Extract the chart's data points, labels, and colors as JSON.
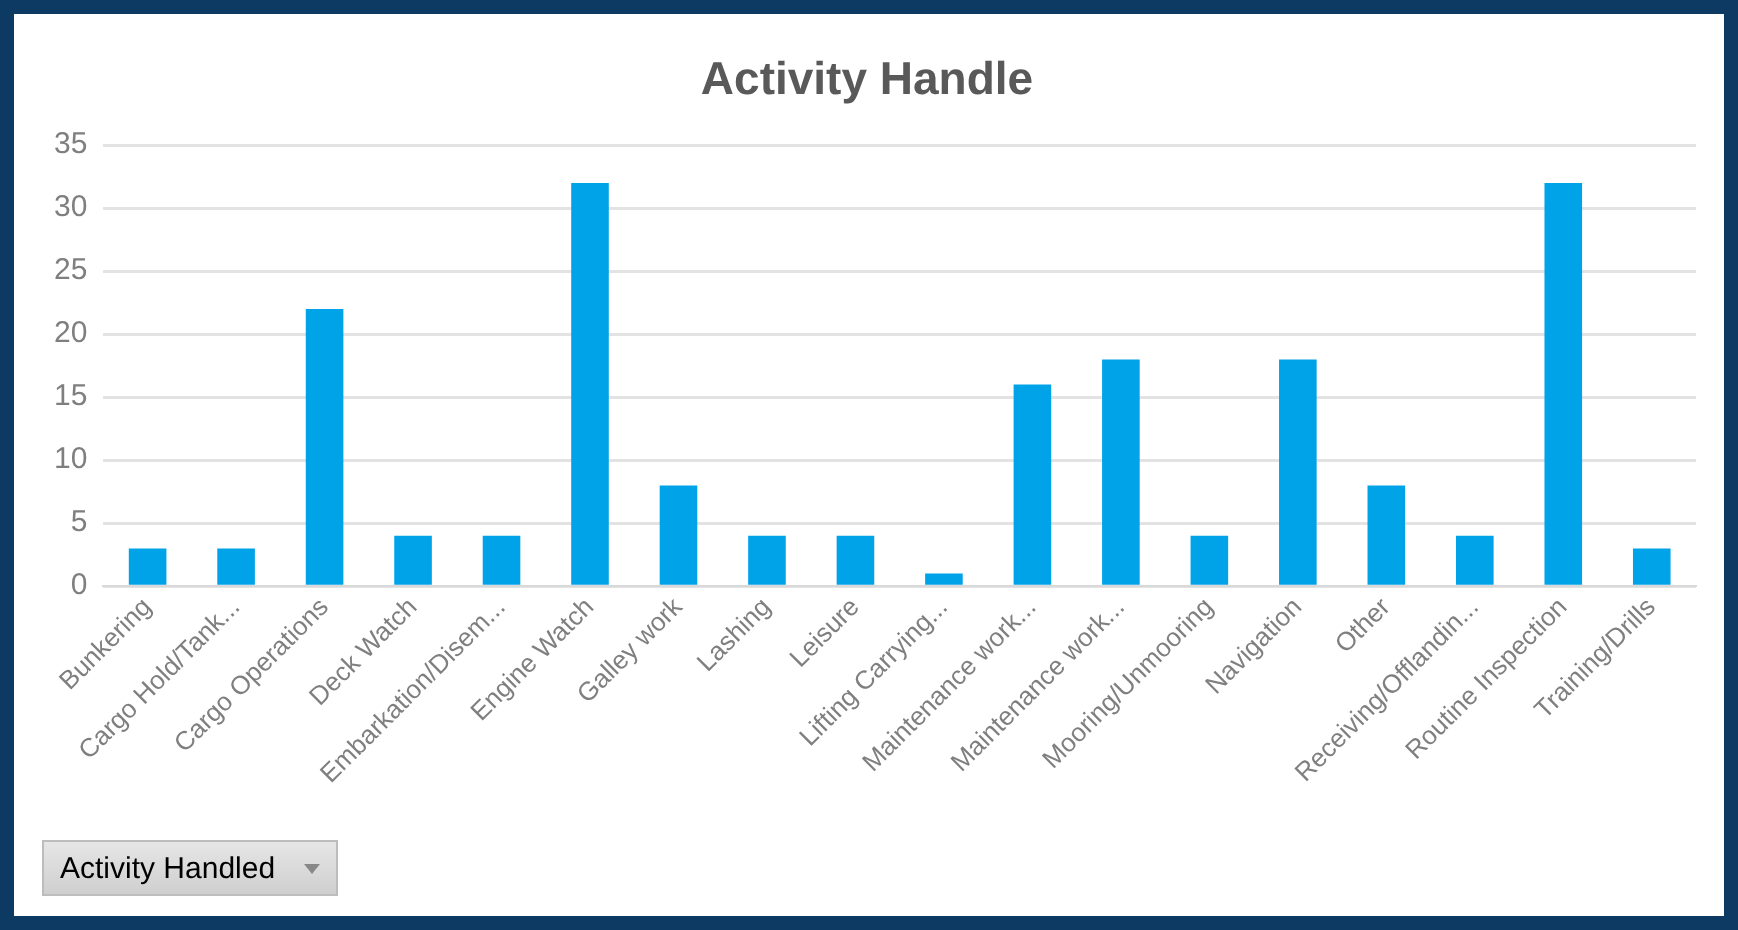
{
  "chart_data": {
    "type": "bar",
    "title": "Activity Handle",
    "categories": [
      "Bunkering",
      "Cargo Hold/Tank...",
      "Cargo Operations",
      "Deck Watch",
      "Embarkation/Disem...",
      "Engine Watch",
      "Galley work",
      "Lashing",
      "Leisure",
      "Lifting Carrying...",
      "Maintenance work...",
      "Maintenance work...",
      "Mooring/Unmooring",
      "Navigation",
      "Other",
      "Receiving/Offlandin...",
      "Routine Inspection",
      "Training/Drills"
    ],
    "values": [
      3,
      3,
      22,
      4,
      4,
      32,
      8,
      4,
      4,
      1,
      16,
      18,
      4,
      18,
      8,
      4,
      32,
      3
    ],
    "color": "#00a2e8",
    "ylim": [
      0,
      35
    ],
    "yticks": [
      0,
      5,
      10,
      15,
      20,
      25,
      30,
      35
    ],
    "grid": "y",
    "legend": false,
    "annotations": [
      "Activity Handled"
    ]
  }
}
